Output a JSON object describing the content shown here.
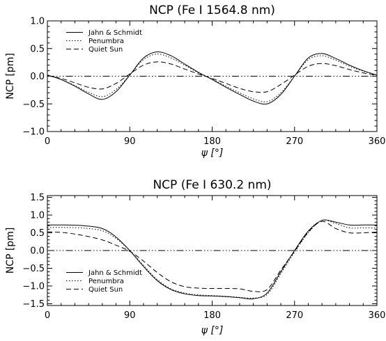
{
  "chart_data": [
    {
      "type": "line",
      "title": "NCP (Fe I 1564.8 nm)",
      "xlabel": "ψ [°]",
      "ylabel": "NCP [pm]",
      "xlim": [
        0,
        360
      ],
      "ylim": [
        -1.0,
        1.0
      ],
      "xticks": [
        "0",
        "90",
        "180",
        "270",
        "360"
      ],
      "xtick_values": [
        0,
        90,
        180,
        270,
        360
      ],
      "yticks": [
        "−1.0",
        "−0.5",
        "0.0",
        "0.5",
        "1.0"
      ],
      "ytick_values": [
        -1.0,
        -0.5,
        0.0,
        0.5,
        1.0
      ],
      "legend_position": "top-left",
      "zero_line": true,
      "series": [
        {
          "name": "Jahn & Schmidt",
          "style": "solid",
          "x": [
            0,
            15,
            30,
            45,
            60,
            75,
            90,
            105,
            120,
            135,
            150,
            165,
            180,
            195,
            210,
            225,
            240,
            255,
            270,
            285,
            300,
            315,
            330,
            345,
            360
          ],
          "y": [
            0.02,
            -0.06,
            -0.18,
            -0.32,
            -0.42,
            -0.28,
            0.02,
            0.33,
            0.44,
            0.37,
            0.22,
            0.07,
            -0.06,
            -0.2,
            -0.33,
            -0.45,
            -0.5,
            -0.33,
            0.0,
            0.33,
            0.41,
            0.32,
            0.2,
            0.1,
            0.02
          ]
        },
        {
          "name": "Penumbra",
          "style": "dotted",
          "x": [
            0,
            15,
            30,
            45,
            60,
            75,
            90,
            105,
            120,
            135,
            150,
            165,
            180,
            195,
            210,
            225,
            240,
            255,
            270,
            285,
            300,
            315,
            330,
            345,
            360
          ],
          "y": [
            0.02,
            -0.06,
            -0.17,
            -0.29,
            -0.37,
            -0.24,
            0.02,
            0.3,
            0.4,
            0.33,
            0.2,
            0.06,
            -0.05,
            -0.18,
            -0.3,
            -0.41,
            -0.46,
            -0.3,
            0.0,
            0.3,
            0.37,
            0.29,
            0.18,
            0.09,
            0.02
          ]
        },
        {
          "name": "Quiet Sun",
          "style": "dashed",
          "x": [
            0,
            15,
            30,
            45,
            60,
            75,
            90,
            105,
            120,
            135,
            150,
            165,
            180,
            195,
            210,
            225,
            240,
            255,
            270,
            285,
            300,
            315,
            330,
            345,
            360
          ],
          "y": [
            0.01,
            -0.04,
            -0.12,
            -0.2,
            -0.23,
            -0.13,
            0.04,
            0.2,
            0.26,
            0.22,
            0.13,
            0.04,
            -0.04,
            -0.13,
            -0.22,
            -0.28,
            -0.28,
            -0.15,
            0.02,
            0.18,
            0.23,
            0.19,
            0.12,
            0.06,
            0.01
          ]
        }
      ]
    },
    {
      "type": "line",
      "title": "NCP (Fe I 630.2 nm)",
      "xlabel": "ψ [°]",
      "ylabel": "NCP [pm]",
      "xlim": [
        0,
        360
      ],
      "ylim": [
        -1.55,
        1.55
      ],
      "xticks": [
        "0",
        "90",
        "180",
        "270",
        "360"
      ],
      "xtick_values": [
        0,
        90,
        180,
        270,
        360
      ],
      "yticks": [
        "−1.5",
        "−1.0",
        "−0.5",
        "0.0",
        "0.5",
        "1.0",
        "1.5"
      ],
      "ytick_values": [
        -1.5,
        -1.0,
        -0.5,
        0.0,
        0.5,
        1.0,
        1.5
      ],
      "legend_position": "bottom-left",
      "zero_line": true,
      "series": [
        {
          "name": "Jahn & Schmidt",
          "style": "solid",
          "x": [
            0,
            20,
            40,
            60,
            75,
            90,
            105,
            120,
            135,
            150,
            165,
            180,
            195,
            210,
            225,
            240,
            255,
            270,
            285,
            300,
            315,
            330,
            345,
            360
          ],
          "y": [
            0.72,
            0.72,
            0.7,
            0.62,
            0.38,
            0.0,
            -0.45,
            -0.85,
            -1.1,
            -1.22,
            -1.27,
            -1.28,
            -1.3,
            -1.33,
            -1.36,
            -1.2,
            -0.6,
            0.0,
            0.55,
            0.85,
            0.8,
            0.72,
            0.72,
            0.72
          ]
        },
        {
          "name": "Penumbra",
          "style": "dotted",
          "x": [
            0,
            20,
            40,
            60,
            75,
            90,
            105,
            120,
            135,
            150,
            165,
            180,
            195,
            210,
            225,
            240,
            255,
            270,
            285,
            300,
            315,
            330,
            345,
            360
          ],
          "y": [
            0.65,
            0.65,
            0.63,
            0.56,
            0.34,
            0.0,
            -0.42,
            -0.82,
            -1.08,
            -1.2,
            -1.25,
            -1.27,
            -1.29,
            -1.32,
            -1.34,
            -1.24,
            -0.65,
            -0.05,
            0.5,
            0.85,
            0.76,
            0.64,
            0.64,
            0.64
          ]
        },
        {
          "name": "Quiet Sun",
          "style": "dashed",
          "x": [
            0,
            20,
            40,
            60,
            75,
            90,
            105,
            120,
            135,
            150,
            165,
            180,
            195,
            210,
            225,
            240,
            255,
            270,
            285,
            300,
            315,
            330,
            345,
            360
          ],
          "y": [
            0.53,
            0.5,
            0.42,
            0.3,
            0.15,
            -0.02,
            -0.3,
            -0.62,
            -0.88,
            -1.02,
            -1.06,
            -1.07,
            -1.07,
            -1.08,
            -1.15,
            -1.1,
            -0.55,
            -0.02,
            0.52,
            0.82,
            0.62,
            0.5,
            0.5,
            0.52
          ]
        }
      ]
    }
  ]
}
